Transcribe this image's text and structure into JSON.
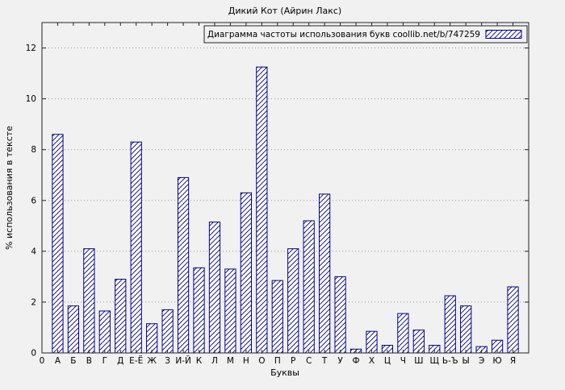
{
  "chart_data": {
    "type": "bar",
    "title": "Дикий Кот (Айрин Лакс)",
    "legend": "Диаграмма частоты использования букв coollib.net/b/747259",
    "xlabel": "Буквы",
    "ylabel": "% использования в тексте",
    "origin_label": "0",
    "ylim": [
      0,
      13
    ],
    "yticks": [
      0,
      2,
      4,
      6,
      8,
      10,
      12
    ],
    "grid": "horizontal-dotted",
    "legend_position": "top-right-boxed",
    "categories": [
      "А",
      "Б",
      "В",
      "Г",
      "Д",
      "Е-Ё",
      "Ж",
      "З",
      "И-Й",
      "К",
      "Л",
      "М",
      "Н",
      "О",
      "П",
      "Р",
      "С",
      "Т",
      "У",
      "Ф",
      "Х",
      "Ц",
      "Ч",
      "Ш",
      "Щ",
      "Ь-Ъ",
      "Ы",
      "Э",
      "Ю",
      "Я"
    ],
    "values": [
      8.6,
      1.85,
      4.1,
      1.65,
      2.9,
      8.3,
      1.15,
      1.7,
      6.9,
      3.35,
      5.15,
      3.3,
      6.3,
      11.25,
      2.85,
      4.1,
      5.2,
      6.25,
      3.0,
      0.15,
      0.85,
      0.3,
      1.55,
      0.9,
      0.3,
      2.25,
      1.85,
      0.25,
      0.5,
      2.6
    ],
    "colors": {
      "bar_stroke": "#00008b",
      "bar_fill": "#ffffff",
      "hatch": "#00008b",
      "background": "#f1f1f1",
      "grid": "#9a9a9a",
      "axis": "#222222"
    }
  }
}
